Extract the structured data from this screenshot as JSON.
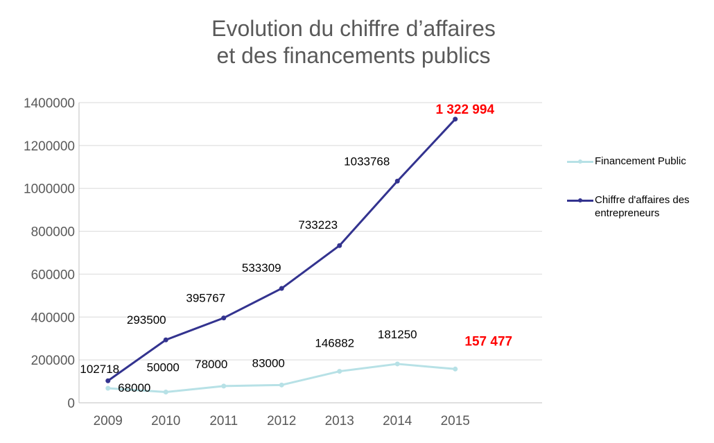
{
  "title": {
    "line1": "Evolution du chiffre d’affaires",
    "line2": "et des financements publics"
  },
  "colors": {
    "financement": "#b7e1e6",
    "chiffre": "#33338f",
    "highlight": "#ff0000",
    "grid": "#d9d9d9",
    "axis": "#bfbfbf"
  },
  "chart_data": {
    "type": "line",
    "x": [
      "2009",
      "2010",
      "2011",
      "2012",
      "2013",
      "2014",
      "2015"
    ],
    "ylim": [
      0,
      1400000
    ],
    "yticks": [
      "0",
      "200000",
      "400000",
      "600000",
      "800000",
      "1000000",
      "1200000",
      "1400000"
    ],
    "grid": true,
    "legend_position": "right",
    "series": [
      {
        "name": "Financement Public",
        "color": "#b7e1e6",
        "values": [
          68000,
          50000,
          78000,
          83000,
          146882,
          181250,
          157477
        ],
        "labels": [
          "68000",
          "50000",
          "78000",
          "83000",
          "146882",
          "181250",
          "157 477"
        ]
      },
      {
        "name": "Chiffre d'affaires des entrepreneurs",
        "color": "#33338f",
        "values": [
          102718,
          293500,
          395767,
          533309,
          733223,
          1033768,
          1322994
        ],
        "labels": [
          "102718",
          "293500",
          "395767",
          "533309",
          "733223",
          "1033768",
          "1 322 994"
        ]
      }
    ]
  }
}
